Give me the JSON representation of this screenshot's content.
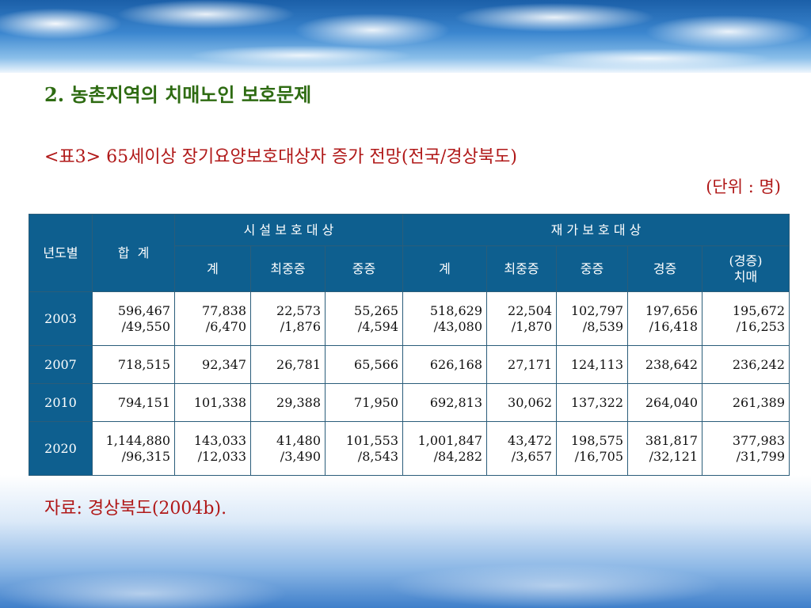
{
  "heading": "2. 농촌지역의 치매노인 보호문제",
  "subtitle": "<표3> 65세이상 장기요양보호대상자 증가 전망(전국/경상북도)",
  "unit": "(단위 : 명)",
  "source": "자료: 경상북도(2004b).",
  "table": {
    "col_year": "년도별",
    "col_total": "합  계",
    "group_facility": "시 설 보 호 대 상",
    "group_home": "재 가 보 호 대 상",
    "sub_facility": [
      "계",
      "최중증",
      "중증"
    ],
    "sub_home": [
      "계",
      "최중증",
      "중증",
      "경증",
      "(경증)",
      "치매"
    ],
    "rows": [
      {
        "year": "2003",
        "cells": [
          [
            "596,467",
            "/49,550"
          ],
          [
            "77,838",
            "/6,470"
          ],
          [
            "22,573",
            "/1,876"
          ],
          [
            "55,265",
            "/4,594"
          ],
          [
            "518,629",
            "/43,080"
          ],
          [
            "22,504",
            "/1,870"
          ],
          [
            "102,797",
            "/8,539"
          ],
          [
            "197,656",
            "/16,418"
          ],
          [
            "195,672",
            "/16,253"
          ]
        ]
      },
      {
        "year": "2007",
        "cells": [
          [
            "718,515"
          ],
          [
            "92,347"
          ],
          [
            "26,781"
          ],
          [
            "65,566"
          ],
          [
            "626,168"
          ],
          [
            "27,171"
          ],
          [
            "124,113"
          ],
          [
            "238,642"
          ],
          [
            "236,242"
          ]
        ]
      },
      {
        "year": "2010",
        "cells": [
          [
            "794,151"
          ],
          [
            "101,338"
          ],
          [
            "29,388"
          ],
          [
            "71,950"
          ],
          [
            "692,813"
          ],
          [
            "30,062"
          ],
          [
            "137,322"
          ],
          [
            "264,040"
          ],
          [
            "261,389"
          ]
        ]
      },
      {
        "year": "2020",
        "cells": [
          [
            "1,144,880",
            "/96,315"
          ],
          [
            "143,033",
            "/12,033"
          ],
          [
            "41,480",
            "/3,490"
          ],
          [
            "101,553",
            "/8,543"
          ],
          [
            "1,001,847",
            "/84,282"
          ],
          [
            "43,472",
            "/3,657"
          ],
          [
            "198,575",
            "/16,705"
          ],
          [
            "381,817",
            "/32,121"
          ],
          [
            "377,983",
            "/31,799"
          ]
        ]
      }
    ]
  }
}
